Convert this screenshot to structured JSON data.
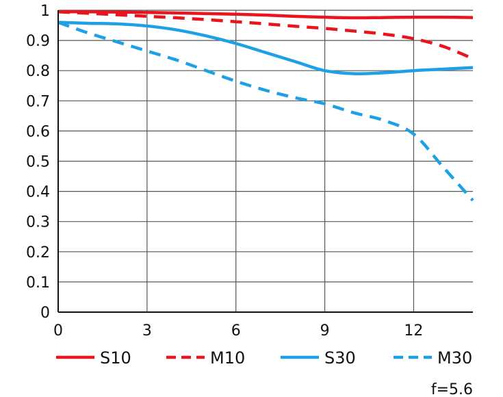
{
  "chart_data": {
    "type": "line",
    "title": "",
    "xlabel": "",
    "ylabel": "",
    "xlim": [
      0,
      14
    ],
    "ylim": [
      0,
      1
    ],
    "x_ticks": [
      0,
      3,
      6,
      9,
      12
    ],
    "x_tick_labels": [
      "0",
      "3",
      "6",
      "9",
      "12"
    ],
    "y_ticks": [
      0,
      0.1,
      0.2,
      0.3,
      0.4,
      0.5,
      0.6,
      0.7,
      0.8,
      0.9,
      1
    ],
    "y_tick_labels": [
      "0",
      "0.1",
      "0.2",
      "0.3",
      "0.4",
      "0.5",
      "0.6",
      "0.7",
      "0.8",
      "0.9",
      "1"
    ],
    "grid": true,
    "legend_position": "bottom",
    "annotation": "f=5.6",
    "series": [
      {
        "name": "S10",
        "color": "#e8141e",
        "dash": "solid",
        "x": [
          0,
          1,
          2,
          3,
          4,
          5,
          6,
          7,
          8,
          9,
          10,
          11,
          12,
          13,
          14
        ],
        "y": [
          0.995,
          0.995,
          0.994,
          0.993,
          0.991,
          0.989,
          0.987,
          0.984,
          0.98,
          0.977,
          0.975,
          0.976,
          0.977,
          0.977,
          0.976
        ]
      },
      {
        "name": "M10",
        "color": "#e8141e",
        "dash": "dashed",
        "x": [
          0,
          1,
          2,
          3,
          4,
          5,
          6,
          7,
          8,
          9,
          10,
          11,
          12,
          13,
          14
        ],
        "y": [
          0.995,
          0.99,
          0.985,
          0.98,
          0.975,
          0.969,
          0.962,
          0.955,
          0.947,
          0.94,
          0.931,
          0.921,
          0.906,
          0.88,
          0.84
        ]
      },
      {
        "name": "S30",
        "color": "#1ea0e6",
        "dash": "solid",
        "x": [
          0,
          1,
          2,
          3,
          4,
          5,
          6,
          7,
          8,
          9,
          10,
          11,
          12,
          13,
          14
        ],
        "y": [
          0.96,
          0.957,
          0.955,
          0.948,
          0.935,
          0.915,
          0.89,
          0.86,
          0.83,
          0.8,
          0.79,
          0.793,
          0.8,
          0.805,
          0.81
        ]
      },
      {
        "name": "M30",
        "color": "#1ea0e6",
        "dash": "dashed",
        "x": [
          0,
          1,
          2,
          3,
          4,
          5,
          6,
          7,
          8,
          9,
          10,
          11,
          12,
          13,
          14
        ],
        "y": [
          0.96,
          0.925,
          0.895,
          0.865,
          0.835,
          0.8,
          0.765,
          0.735,
          0.71,
          0.69,
          0.66,
          0.635,
          0.59,
          0.48,
          0.37
        ]
      }
    ]
  }
}
